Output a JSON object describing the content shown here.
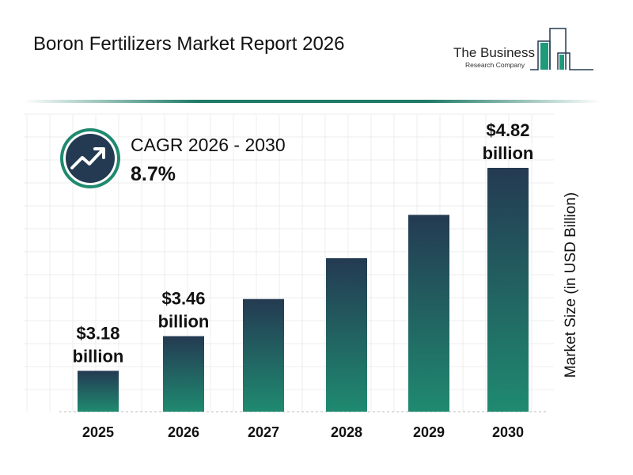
{
  "header": {
    "title": "Boron Fertilizers Market Report 2026",
    "logo_line1": "The Business",
    "logo_line2": "Research Company"
  },
  "cagr": {
    "label": "CAGR 2026 - 2030",
    "value": "8.7%",
    "icon": "trending-up-icon"
  },
  "colors": {
    "bar_top": "#243a52",
    "bar_bottom": "#1f8a70",
    "accent": "#1f7a66"
  },
  "chart_data": {
    "type": "bar",
    "categories": [
      "2025",
      "2026",
      "2027",
      "2028",
      "2029",
      "2030"
    ],
    "values": [
      3.18,
      3.46,
      3.76,
      4.09,
      4.44,
      4.82
    ],
    "data_labels": [
      {
        "index": 0,
        "line1": "$3.18",
        "line2": "billion"
      },
      {
        "index": 1,
        "line1": "$3.46",
        "line2": "billion"
      },
      {
        "index": 5,
        "line1": "$4.82",
        "line2": "billion"
      }
    ],
    "ylabel": "Market Size (in USD Billion)",
    "xlabel": "",
    "grid": true
  }
}
